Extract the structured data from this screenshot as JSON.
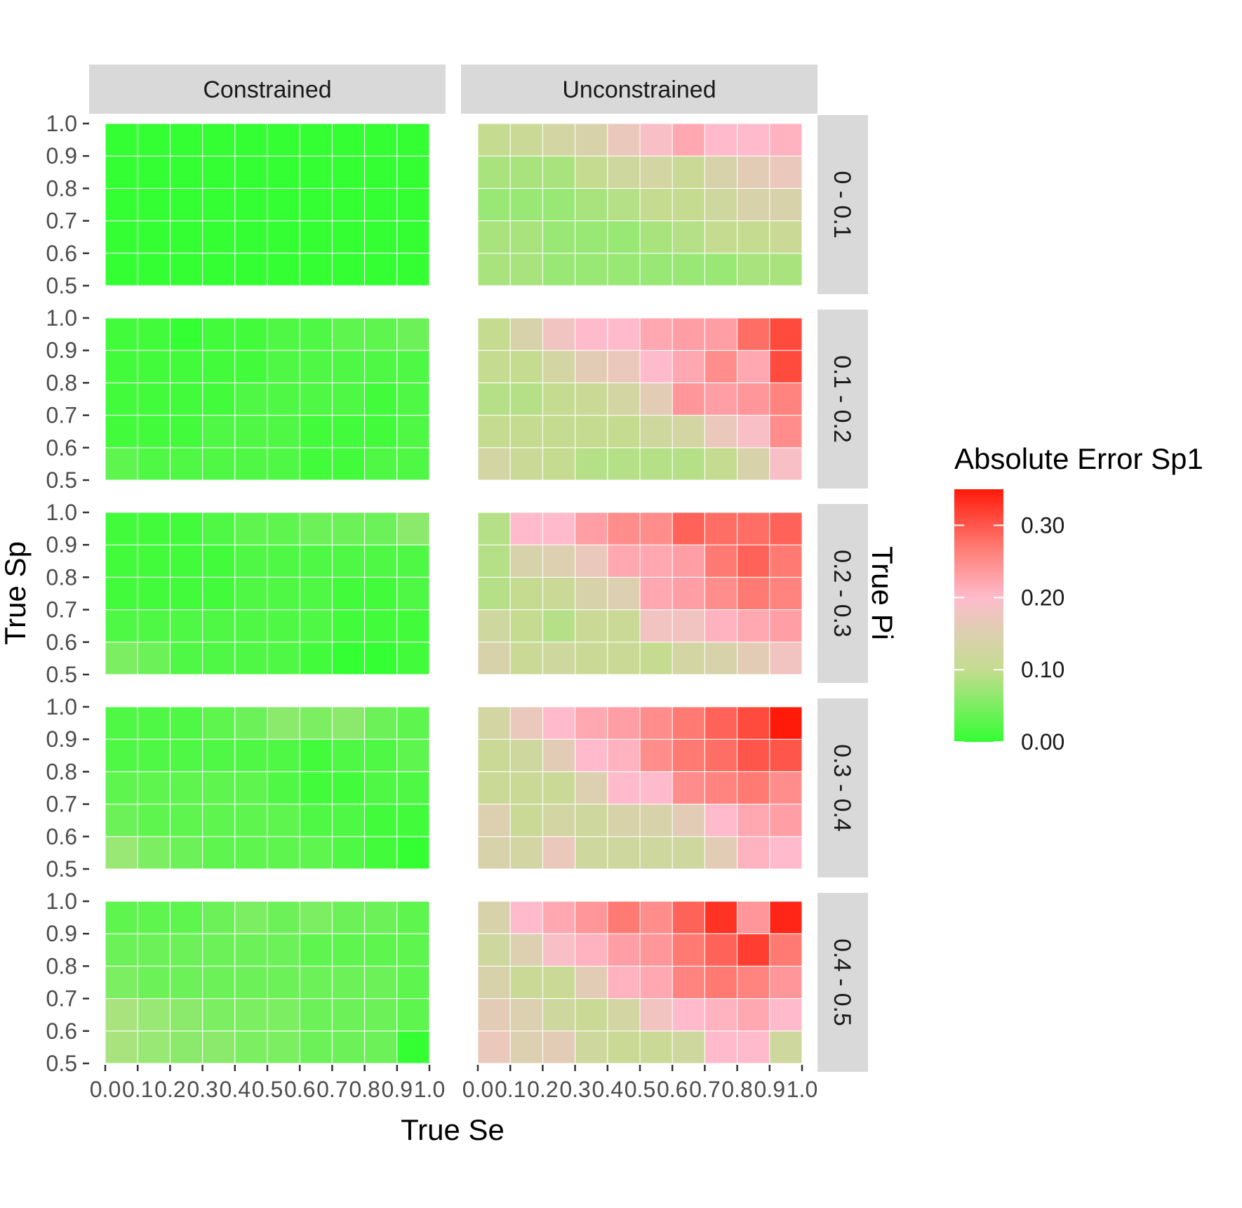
{
  "chart_data": {
    "type": "heatmap",
    "facet_columns": [
      "Constrained",
      "Unconstrained"
    ],
    "facet_rows": [
      "0 - 0.1",
      "0.1 - 0.2",
      "0.2 - 0.3",
      "0.3 - 0.4",
      "0.4 - 0.5"
    ],
    "row_facet_title": "True Pi",
    "xlabel": "True Se",
    "ylabel": "True Sp",
    "x_ticks": [
      "0.0",
      "0.1",
      "0.2",
      "0.3",
      "0.4",
      "0.5",
      "0.6",
      "0.7",
      "0.8",
      "0.9",
      "1.0"
    ],
    "y_ticks": [
      "0.5",
      "0.6",
      "0.7",
      "0.8",
      "0.9",
      "1.0"
    ],
    "x_cells": [
      0.05,
      0.15,
      0.25,
      0.35,
      0.45,
      0.55,
      0.65,
      0.75,
      0.85,
      0.95
    ],
    "y_cells": [
      0.55,
      0.65,
      0.75,
      0.85,
      0.95
    ],
    "legend": {
      "title": "Absolute Error Sp1",
      "ticks": [
        "0.00",
        "0.10",
        "0.20",
        "0.30"
      ],
      "tick_values": [
        0.0,
        0.1,
        0.2,
        0.3
      ],
      "limits": [
        0.0,
        0.35
      ],
      "gradient": [
        {
          "value": 0.0,
          "color": "#33ff33"
        },
        {
          "value": 0.1,
          "color": "#c5dc90"
        },
        {
          "value": 0.15,
          "color": "#dcd0b0"
        },
        {
          "value": 0.2,
          "color": "#ffbbcc"
        },
        {
          "value": 0.27,
          "color": "#ff7a72"
        },
        {
          "value": 0.35,
          "color": "#ff1a0a"
        }
      ],
      "placement": "right"
    },
    "panels": [
      {
        "row": "0 - 0.1",
        "column": "Constrained",
        "z": [
          [
            0.0,
            0.0,
            0.0,
            0.0,
            0.0,
            0.0,
            0.0,
            0.0,
            0.0,
            0.0
          ],
          [
            0.0,
            0.0,
            0.0,
            0.0,
            0.0,
            0.0,
            0.0,
            0.0,
            0.0,
            0.0
          ],
          [
            0.0,
            0.0,
            0.0,
            0.0,
            0.0,
            0.0,
            0.0,
            0.0,
            0.0,
            0.0
          ],
          [
            0.0,
            0.0,
            0.0,
            0.0,
            0.0,
            0.0,
            0.0,
            0.0,
            0.0,
            0.0
          ],
          [
            0.0,
            0.0,
            0.0,
            0.0,
            0.0,
            0.0,
            0.0,
            0.0,
            0.0,
            0.0
          ]
        ]
      },
      {
        "row": "0 - 0.1",
        "column": "Unconstrained",
        "z": [
          [
            0.08,
            0.08,
            0.07,
            0.07,
            0.07,
            0.07,
            0.07,
            0.07,
            0.08,
            0.08
          ],
          [
            0.08,
            0.08,
            0.07,
            0.07,
            0.07,
            0.08,
            0.09,
            0.1,
            0.1,
            0.11
          ],
          [
            0.07,
            0.07,
            0.07,
            0.08,
            0.09,
            0.1,
            0.1,
            0.12,
            0.14,
            0.14
          ],
          [
            0.08,
            0.08,
            0.08,
            0.1,
            0.12,
            0.13,
            0.11,
            0.14,
            0.16,
            0.17
          ],
          [
            0.1,
            0.11,
            0.13,
            0.14,
            0.17,
            0.19,
            0.22,
            0.2,
            0.2,
            0.21
          ]
        ]
      },
      {
        "row": "0.1 - 0.2",
        "column": "Constrained",
        "z": [
          [
            0.03,
            0.02,
            0.02,
            0.02,
            0.02,
            0.02,
            0.01,
            0.01,
            0.02,
            0.02
          ],
          [
            0.01,
            0.01,
            0.01,
            0.02,
            0.02,
            0.02,
            0.01,
            0.01,
            0.01,
            0.02
          ],
          [
            0.01,
            0.01,
            0.01,
            0.01,
            0.02,
            0.02,
            0.02,
            0.02,
            0.01,
            0.02
          ],
          [
            0.01,
            0.01,
            0.01,
            0.01,
            0.01,
            0.02,
            0.02,
            0.02,
            0.02,
            0.02
          ],
          [
            0.01,
            0.01,
            0.0,
            0.01,
            0.01,
            0.02,
            0.02,
            0.03,
            0.03,
            0.04
          ]
        ]
      },
      {
        "row": "0.1 - 0.2",
        "column": "Unconstrained",
        "z": [
          [
            0.13,
            0.11,
            0.1,
            0.09,
            0.09,
            0.09,
            0.09,
            0.1,
            0.14,
            0.19
          ],
          [
            0.1,
            0.1,
            0.1,
            0.1,
            0.1,
            0.12,
            0.13,
            0.17,
            0.19,
            0.25
          ],
          [
            0.09,
            0.09,
            0.1,
            0.11,
            0.13,
            0.16,
            0.24,
            0.23,
            0.24,
            0.26
          ],
          [
            0.1,
            0.1,
            0.13,
            0.16,
            0.17,
            0.2,
            0.22,
            0.25,
            0.22,
            0.31
          ],
          [
            0.1,
            0.14,
            0.18,
            0.2,
            0.2,
            0.22,
            0.23,
            0.23,
            0.28,
            0.31
          ]
        ]
      },
      {
        "row": "0.2 - 0.3",
        "column": "Constrained",
        "z": [
          [
            0.05,
            0.04,
            0.02,
            0.02,
            0.02,
            0.02,
            0.01,
            0.0,
            0.0,
            0.01
          ],
          [
            0.02,
            0.02,
            0.02,
            0.02,
            0.02,
            0.02,
            0.02,
            0.01,
            0.01,
            0.01
          ],
          [
            0.01,
            0.01,
            0.01,
            0.01,
            0.02,
            0.02,
            0.02,
            0.01,
            0.01,
            0.02
          ],
          [
            0.01,
            0.01,
            0.01,
            0.01,
            0.02,
            0.02,
            0.02,
            0.02,
            0.02,
            0.02
          ],
          [
            0.01,
            0.01,
            0.01,
            0.02,
            0.03,
            0.03,
            0.04,
            0.04,
            0.04,
            0.06
          ]
        ]
      },
      {
        "row": "0.2 - 0.3",
        "column": "Unconstrained",
        "z": [
          [
            0.14,
            0.11,
            0.12,
            0.11,
            0.11,
            0.1,
            0.13,
            0.14,
            0.16,
            0.18
          ],
          [
            0.12,
            0.1,
            0.09,
            0.11,
            0.11,
            0.18,
            0.18,
            0.21,
            0.22,
            0.23
          ],
          [
            0.09,
            0.1,
            0.11,
            0.14,
            0.15,
            0.22,
            0.23,
            0.25,
            0.27,
            0.26
          ],
          [
            0.09,
            0.14,
            0.15,
            0.17,
            0.22,
            0.22,
            0.23,
            0.27,
            0.29,
            0.27
          ],
          [
            0.09,
            0.2,
            0.2,
            0.23,
            0.25,
            0.25,
            0.29,
            0.28,
            0.28,
            0.29
          ]
        ]
      },
      {
        "row": "0.3 - 0.4",
        "column": "Constrained",
        "z": [
          [
            0.07,
            0.05,
            0.04,
            0.03,
            0.03,
            0.03,
            0.03,
            0.02,
            0.01,
            0.0
          ],
          [
            0.04,
            0.03,
            0.03,
            0.03,
            0.03,
            0.03,
            0.02,
            0.02,
            0.01,
            0.01
          ],
          [
            0.03,
            0.03,
            0.03,
            0.03,
            0.03,
            0.02,
            0.01,
            0.01,
            0.02,
            0.02
          ],
          [
            0.02,
            0.02,
            0.02,
            0.02,
            0.02,
            0.02,
            0.01,
            0.02,
            0.02,
            0.03
          ],
          [
            0.02,
            0.02,
            0.02,
            0.03,
            0.04,
            0.06,
            0.05,
            0.06,
            0.04,
            0.03
          ]
        ]
      },
      {
        "row": "0.3 - 0.4",
        "column": "Unconstrained",
        "z": [
          [
            0.14,
            0.13,
            0.17,
            0.12,
            0.12,
            0.12,
            0.12,
            0.16,
            0.21,
            0.2
          ],
          [
            0.15,
            0.11,
            0.13,
            0.12,
            0.14,
            0.14,
            0.16,
            0.2,
            0.22,
            0.23
          ],
          [
            0.11,
            0.11,
            0.11,
            0.15,
            0.2,
            0.2,
            0.25,
            0.26,
            0.27,
            0.25
          ],
          [
            0.11,
            0.12,
            0.16,
            0.2,
            0.21,
            0.25,
            0.27,
            0.28,
            0.3,
            0.3
          ],
          [
            0.13,
            0.17,
            0.2,
            0.22,
            0.23,
            0.25,
            0.27,
            0.29,
            0.31,
            0.35
          ]
        ]
      },
      {
        "row": "0.4 - 0.5",
        "column": "Constrained",
        "z": [
          [
            0.08,
            0.07,
            0.06,
            0.06,
            0.05,
            0.05,
            0.04,
            0.04,
            0.04,
            0.0
          ],
          [
            0.08,
            0.07,
            0.06,
            0.05,
            0.05,
            0.05,
            0.04,
            0.04,
            0.04,
            0.03
          ],
          [
            0.05,
            0.04,
            0.04,
            0.04,
            0.04,
            0.04,
            0.04,
            0.04,
            0.04,
            0.03
          ],
          [
            0.04,
            0.04,
            0.04,
            0.04,
            0.04,
            0.04,
            0.03,
            0.03,
            0.03,
            0.03
          ],
          [
            0.03,
            0.03,
            0.03,
            0.04,
            0.05,
            0.04,
            0.05,
            0.04,
            0.04,
            0.03
          ]
        ]
      },
      {
        "row": "0.4 - 0.5",
        "column": "Unconstrained",
        "z": [
          [
            0.17,
            0.15,
            0.16,
            0.12,
            0.11,
            0.11,
            0.12,
            0.2,
            0.2,
            0.12
          ],
          [
            0.16,
            0.15,
            0.12,
            0.11,
            0.13,
            0.18,
            0.2,
            0.21,
            0.22,
            0.2
          ],
          [
            0.14,
            0.11,
            0.11,
            0.16,
            0.21,
            0.22,
            0.26,
            0.27,
            0.26,
            0.24
          ],
          [
            0.12,
            0.15,
            0.19,
            0.21,
            0.23,
            0.24,
            0.27,
            0.29,
            0.32,
            0.27
          ],
          [
            0.14,
            0.2,
            0.22,
            0.24,
            0.27,
            0.25,
            0.29,
            0.33,
            0.24,
            0.34
          ]
        ]
      }
    ]
  }
}
